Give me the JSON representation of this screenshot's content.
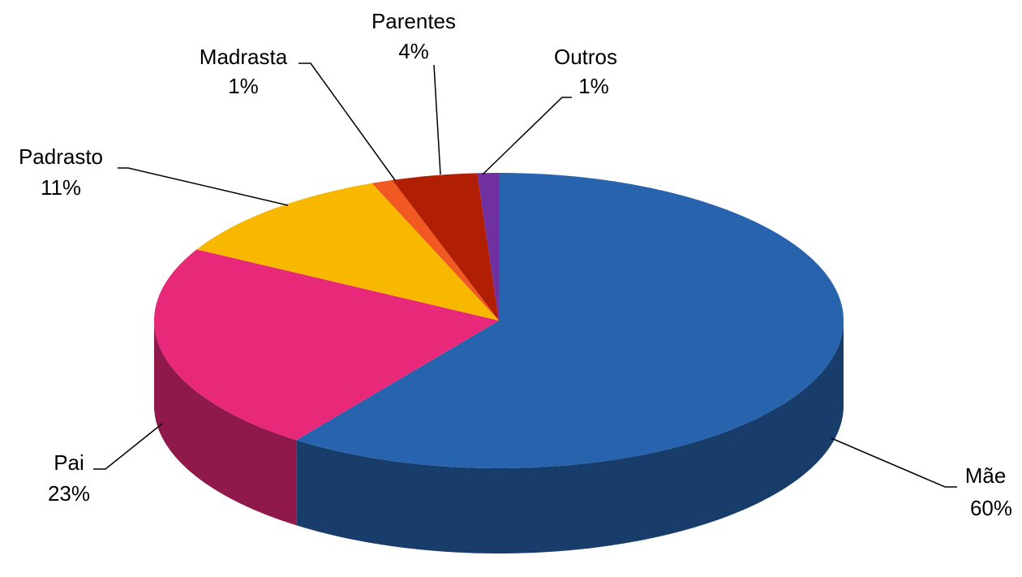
{
  "chart_data": {
    "type": "pie3d",
    "categories": [
      "Mãe",
      "Pai",
      "Padrasto",
      "Madrasta",
      "Parentes",
      "Outros"
    ],
    "values": [
      60,
      23,
      11,
      1,
      4,
      1
    ],
    "value_labels": [
      "60%",
      "23%",
      "11%",
      "1%",
      "4%",
      "1%"
    ],
    "colors": [
      "#2863ad",
      "#e8297a",
      "#f9b800",
      "#f05a22",
      "#b01e04",
      "#7030a0"
    ]
  }
}
